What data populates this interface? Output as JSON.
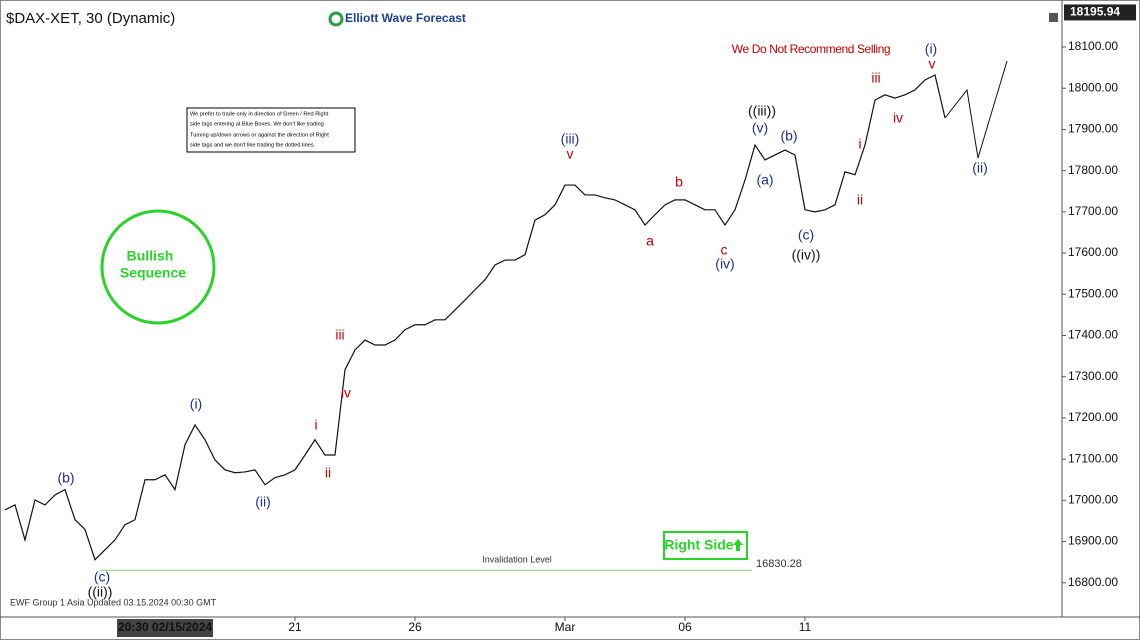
{
  "chart_data": {
    "type": "line",
    "title": "$DAX-XET, 30 (Dynamic)",
    "brand": "Elliott Wave Forecast",
    "last_price": 18195.94,
    "warning": "We Do Not Recommend Selling",
    "note_lines": [
      "We prefer to trade only in direction of Green / Red Right",
      "side tags entering at Blue Boxes. We don't like trading",
      "Turning up/down arrows or against the direction of Right",
      "side tags and we don't like trading the dotted lines."
    ],
    "badge_lines": [
      "Bullish",
      "Sequence"
    ],
    "right_side": "Right Side",
    "invalidation_label": "Invalidation Level",
    "invalidation_value": 16830.28,
    "footer": "EWF Group 1 Asia Updated 03.15.2024 00:30 GMT",
    "color": "#111111",
    "categories": [
      null,
      null,
      null,
      null,
      null,
      null,
      null,
      null,
      null,
      null,
      null,
      null,
      null,
      null,
      null,
      null,
      "20:30 02/15/2024",
      null,
      null,
      null,
      null,
      null,
      null,
      null,
      null,
      null,
      null,
      null,
      null,
      "21",
      null,
      null,
      null,
      null,
      null,
      null,
      null,
      null,
      null,
      null,
      null,
      "26",
      null,
      null,
      null,
      null,
      null,
      null,
      null,
      null,
      null,
      null,
      null,
      null,
      null,
      null,
      "Mar",
      null,
      null,
      null,
      null,
      null,
      null,
      null,
      null,
      null,
      null,
      null,
      "06",
      null,
      null,
      null,
      null,
      null,
      null,
      null,
      null,
      null,
      null,
      null,
      "11",
      null,
      null,
      null,
      null,
      null,
      null,
      null,
      null,
      null,
      null,
      null,
      null,
      null,
      null
    ],
    "values": [
      16977,
      16989,
      16904,
      17001,
      16989,
      17013,
      17026,
      16953,
      16929,
      16856,
      16880,
      16904,
      16941,
      16953,
      17050,
      17050,
      17062,
      17026,
      17135,
      17183,
      17147,
      17098,
      17074,
      17067,
      17069,
      17074,
      17038,
      17055,
      17062,
      17074,
      17110,
      17147,
      17110,
      17110,
      17317,
      17365,
      17389,
      17377,
      17377,
      17389,
      17414,
      17426,
      17426,
      17438,
      17438,
      17462,
      17486,
      17511,
      17535,
      17571,
      17583,
      17583,
      17596,
      17680,
      17693,
      17717,
      17765,
      17765,
      17741,
      17741,
      17734,
      17729,
      17717,
      17705,
      17668,
      17693,
      17717,
      17729,
      17729,
      17717,
      17705,
      17705,
      17668,
      17705,
      17777,
      17862,
      17826,
      17838,
      17850,
      17838,
      17705,
      17700,
      17705,
      17717,
      17797,
      17790,
      17862,
      17971,
      17984,
      17976,
      17984,
      17996,
      18020,
      18032,
      17928
    ],
    "ylim": [
      16717,
      18214
    ],
    "yticks": [
      {
        "value": 16800,
        "label": "16800.00"
      },
      {
        "value": 16900,
        "label": "16900.00"
      },
      {
        "value": 17000,
        "label": "17000.00"
      },
      {
        "value": 17100,
        "label": "17100.00"
      },
      {
        "value": 17200,
        "label": "17200.00"
      },
      {
        "value": 17300,
        "label": "17300.00"
      },
      {
        "value": 17400,
        "label": "17400.00"
      },
      {
        "value": 17500,
        "label": "17500.00"
      },
      {
        "value": 17600,
        "label": "17600.00"
      },
      {
        "value": 17700,
        "label": "17700.00"
      },
      {
        "value": 17800,
        "label": "17800.00"
      },
      {
        "value": 17900,
        "label": "17900.00"
      },
      {
        "value": 18000,
        "label": "18000.00"
      },
      {
        "value": 18100,
        "label": "18100.00"
      }
    ],
    "grid": false,
    "annotations": [
      {
        "text": "(b)",
        "color": "#1f2f8f"
      },
      {
        "text": "(c)",
        "color": "#1f2f8f"
      },
      {
        "text": "((ii))",
        "color": "#111111"
      },
      {
        "text": "(i)",
        "color": "#1f2f8f"
      },
      {
        "text": "(ii)",
        "color": "#1f2f8f"
      },
      {
        "text": "i",
        "color": "#c40000"
      },
      {
        "text": "ii",
        "color": "#c40000"
      },
      {
        "text": "iii",
        "color": "#c40000"
      },
      {
        "text": "iv",
        "color": "#c40000"
      },
      {
        "text": "(iii)",
        "color": "#1f2f8f"
      },
      {
        "text": "v",
        "color": "#c40000"
      },
      {
        "text": "a",
        "color": "#c40000"
      },
      {
        "text": "b",
        "color": "#c40000"
      },
      {
        "text": "c",
        "color": "#c40000"
      },
      {
        "text": "(iv)",
        "color": "#1f2f8f"
      },
      {
        "text": "((iii))",
        "color": "#111111"
      },
      {
        "text": "(v)",
        "color": "#1f2f8f"
      },
      {
        "text": "(a)",
        "color": "#1f2f8f"
      },
      {
        "text": "(b)",
        "color": "#1f2f8f"
      },
      {
        "text": "(c)",
        "color": "#1f2f8f"
      },
      {
        "text": "((iv))",
        "color": "#111111"
      },
      {
        "text": "i",
        "color": "#c40000"
      },
      {
        "text": "ii",
        "color": "#c40000"
      },
      {
        "text": "iii",
        "color": "#c40000"
      },
      {
        "text": "iv",
        "color": "#c40000"
      },
      {
        "text": "(i)",
        "color": "#1f2f8f"
      },
      {
        "text": "v",
        "color": "#c40000"
      },
      {
        "text": "(ii)",
        "color": "#1f2f8f"
      }
    ]
  }
}
